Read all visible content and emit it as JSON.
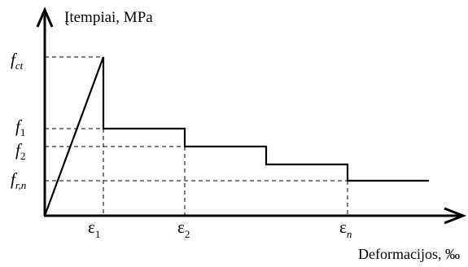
{
  "diagram": {
    "y_axis_title": "Įtempiai, MPa",
    "x_axis_title": "Deformacijos, ‰",
    "y_labels": {
      "fct": {
        "base": "f",
        "sub": "ct"
      },
      "f1": {
        "base": "f",
        "sub": "1"
      },
      "f2": {
        "base": "f",
        "sub": "2"
      },
      "frn": {
        "base": "f",
        "sub": "r,n"
      }
    },
    "x_labels": {
      "e1": {
        "base": "ε",
        "sub": "1"
      },
      "e2": {
        "base": "ε",
        "sub": "2"
      },
      "en": {
        "base": "ε",
        "sub": "n"
      }
    }
  }
}
